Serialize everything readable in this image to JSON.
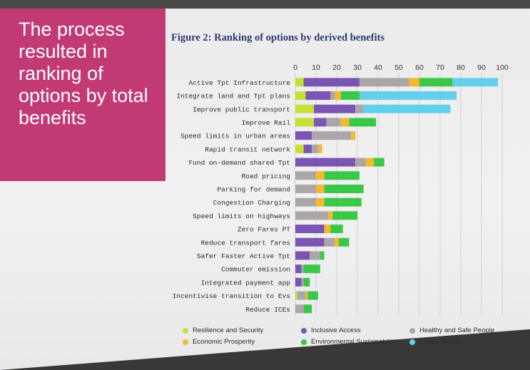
{
  "slide": {
    "headline": "The process resulted in ranking of options by total benefits"
  },
  "chart_data": {
    "type": "bar",
    "stacked": true,
    "orientation": "horizontal",
    "title": "Figure 2: Ranking of options by derived benefits",
    "xlim": [
      0,
      100
    ],
    "x_ticks": [
      0,
      10,
      20,
      30,
      40,
      50,
      60,
      70,
      80,
      90,
      100
    ],
    "grid": true,
    "legend_position": "bottom",
    "categories": [
      "Active Tpt Infrastructure",
      "Integrate land and Tpt plans",
      "Improve public transport",
      "Improve Rail",
      "Speed limits in urban areas",
      "Rapid transit network",
      "Fund on-demand shared Tpt",
      "Road pricing",
      "Parking for demand",
      "Congestion Charging",
      "Speed limits on highways",
      "Zero Fares PT",
      "Reduce transport fares",
      "Safer Faster Active Tpt",
      "Commuter emission",
      "Integrated payment app",
      "Incentivise transition to Evs",
      "Reduce ICEs"
    ],
    "series": [
      {
        "name": "Resilience and Security",
        "color": "#c6e033",
        "values": [
          4,
          5,
          9,
          9,
          0,
          4,
          0,
          0,
          0,
          0,
          0,
          0,
          0,
          0,
          0,
          0,
          1,
          0
        ]
      },
      {
        "name": "Inclusive Access",
        "color": "#7a55b3",
        "values": [
          27,
          12,
          20,
          6,
          8,
          4,
          29,
          0,
          0,
          0,
          0,
          14,
          14,
          7,
          3,
          3,
          0,
          0
        ]
      },
      {
        "name": "Healthy and Safe People",
        "color": "#aba6aa",
        "values": [
          24,
          2,
          4,
          7,
          19,
          3,
          5,
          10,
          10,
          10,
          16,
          0,
          5,
          5,
          1,
          1,
          4,
          4
        ]
      },
      {
        "name": "Economic Prosperity",
        "color": "#f5b82e",
        "values": [
          5,
          3,
          0,
          4,
          2,
          2,
          4,
          4,
          4,
          4,
          2,
          3,
          2,
          0,
          0,
          0,
          1,
          0
        ]
      },
      {
        "name": "Environmental Sustainability",
        "color": "#3bc748",
        "values": [
          16,
          9,
          0,
          13,
          0,
          0,
          5,
          17,
          19,
          18,
          12,
          6,
          5,
          2,
          8,
          3,
          5,
          4
        ]
      },
      {
        "name": "Future Impact",
        "color": "#62d0ea",
        "values": [
          22,
          47,
          42,
          0,
          0,
          0,
          0,
          0,
          0,
          0,
          0,
          0,
          0,
          0,
          0,
          0,
          0,
          0
        ]
      }
    ]
  }
}
